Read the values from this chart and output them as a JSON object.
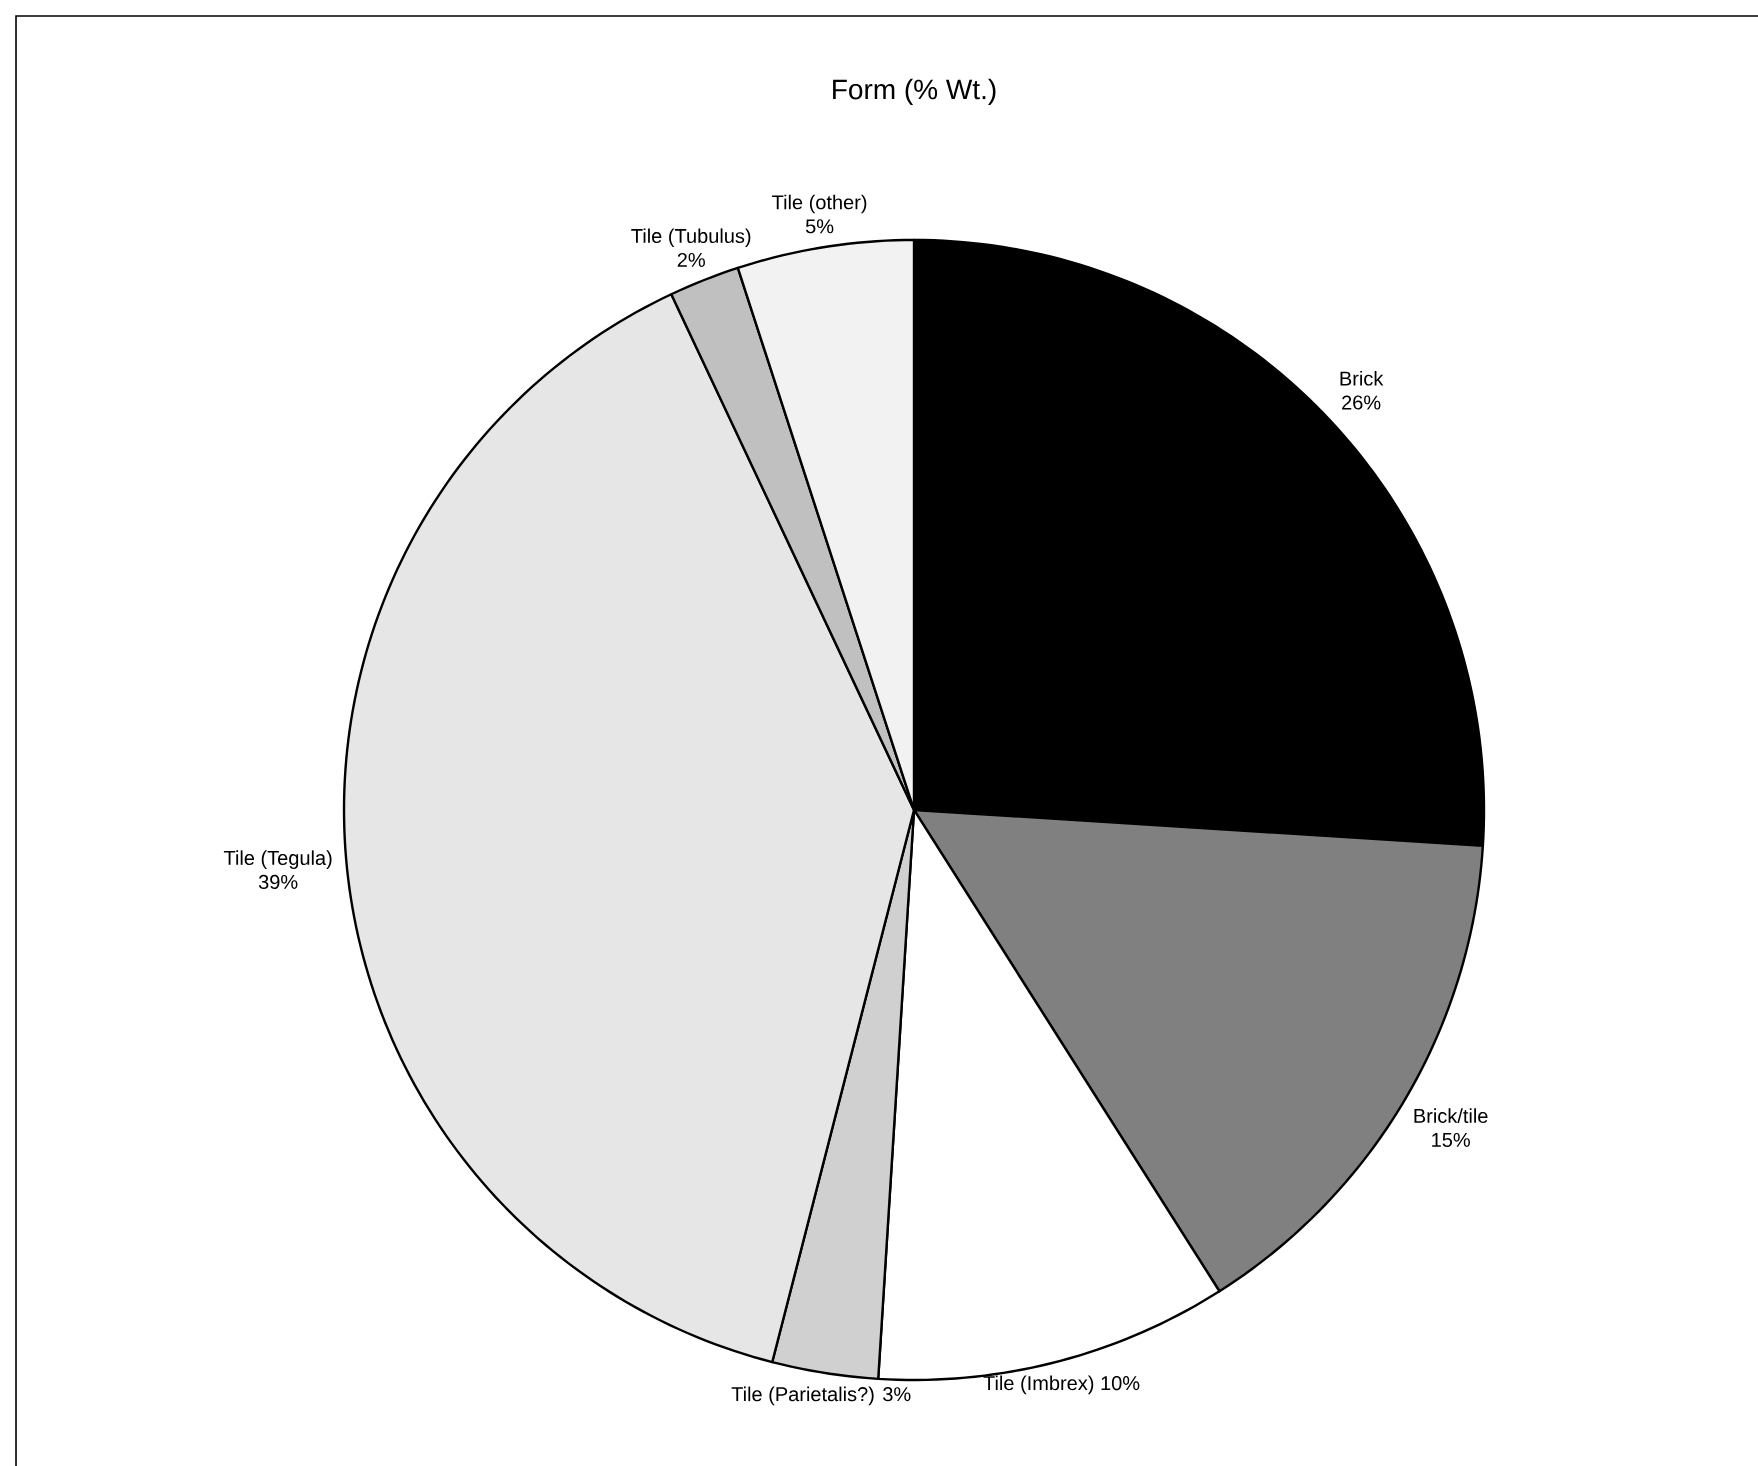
{
  "chart_data": {
    "type": "pie",
    "title": "Form (% Wt.)",
    "categories": [
      "Brick",
      "Brick/tile",
      "Tile (Imbrex)",
      "Tile (Parietalis?)",
      "Tile (Tegula)",
      "Tile (Tubulus)",
      "Tile (other)"
    ],
    "values": [
      26,
      15,
      10,
      3,
      39,
      2,
      5
    ],
    "value_labels": [
      "26%",
      "15%",
      "10%",
      "3%",
      "39%",
      "2%",
      "5%"
    ],
    "colors": [
      "#000000",
      "#808080",
      "#ffffff",
      "#d0d0d0",
      "#e6e6e6",
      "#c0c0c0",
      "#f2f2f2"
    ]
  }
}
